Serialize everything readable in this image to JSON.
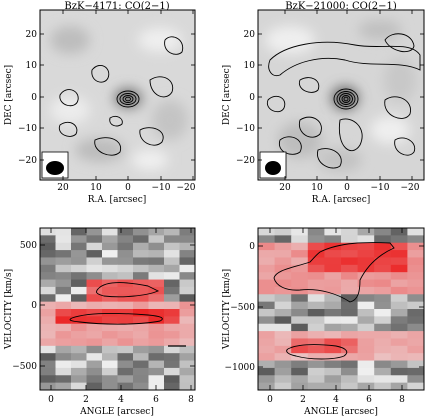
{
  "panels": {
    "top_left": {
      "title": "BzK−4171: CO(2−1)",
      "xlabel": "R.A. [arcsec]",
      "ylabel": "DEC [arcsec]",
      "xticks": [
        "20",
        "10",
        "0",
        "−10",
        "−20"
      ],
      "yticks": [
        "20",
        "10",
        "0",
        "−10",
        "−20"
      ]
    },
    "top_right": {
      "title": "BzK−21000: CO(2−1)",
      "xlabel": "R.A. [arcsec]",
      "ylabel": "DEC [arcsec]",
      "xticks": [
        "20",
        "10",
        "0",
        "−10",
        "−20"
      ],
      "yticks": [
        "20",
        "10",
        "0",
        "−10",
        "−20"
      ]
    },
    "bottom_left": {
      "xlabel": "ANGLE [arcsec]",
      "ylabel": "VELOCITY [km/s]",
      "xticks": [
        "0",
        "2",
        "4",
        "6",
        "8"
      ],
      "yticks": [
        "500",
        "0",
        "−500"
      ]
    },
    "bottom_right": {
      "xlabel": "ANGLE [arcsec]",
      "ylabel": "VELOCITY [km/s]",
      "xticks": [
        "0",
        "2",
        "4",
        "6",
        "8"
      ],
      "yticks": [
        "0",
        "−500",
        "−1000"
      ]
    }
  },
  "colors": {
    "map_background": "#d8d8d8",
    "contour": "#000000",
    "pv_red": "#e8232b",
    "pv_gray": "#7a7a7a"
  }
}
